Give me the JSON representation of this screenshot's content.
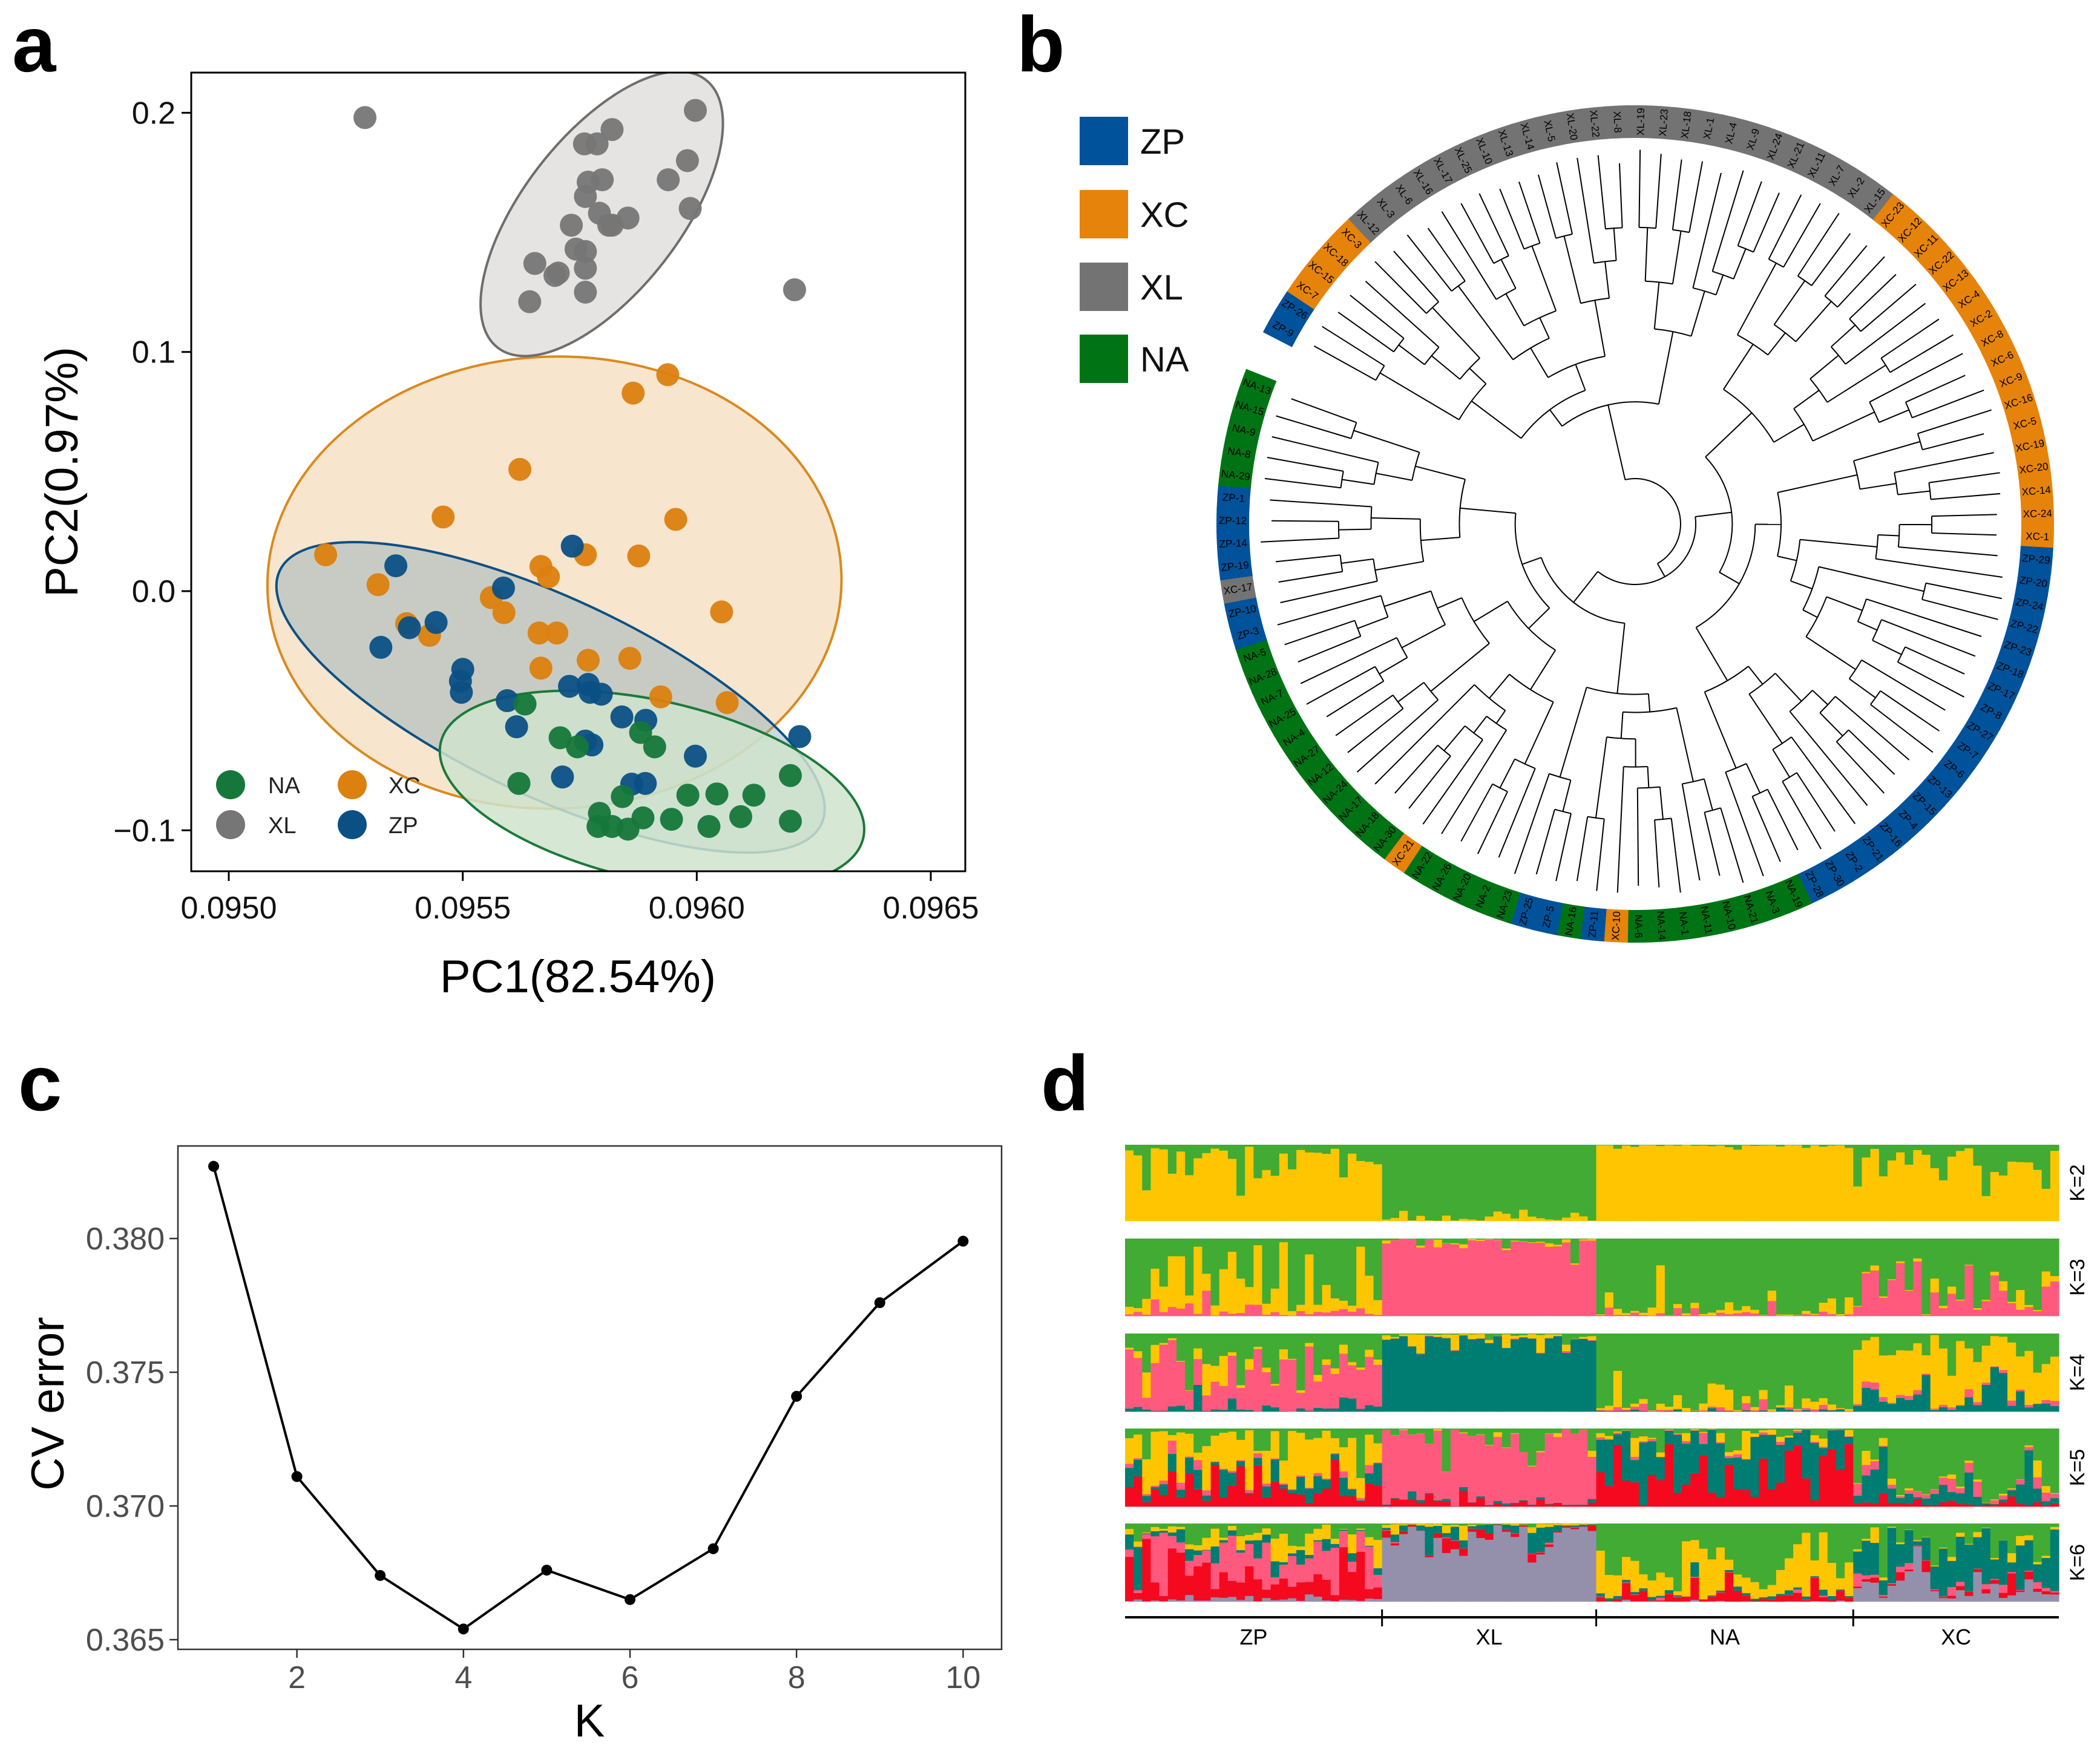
{
  "panel_labels": {
    "a": "a",
    "b": "b",
    "c": "c",
    "d": "d"
  },
  "colors": {
    "NA": "#15773a",
    "XL": "#767676",
    "XC": "#dc800f",
    "ZP": "#0b5085",
    "ring_ZP": "#00529b",
    "ring_XC": "#e6830a",
    "ring_XL": "#737373",
    "ring_NA": "#007414",
    "yellow": "#ffc600",
    "green": "#41ab33",
    "pink": "#ff5a7e",
    "teal": "#007d73",
    "red": "#f5091f",
    "purple": "#9490ac"
  },
  "chart_data": [
    {
      "id": "a",
      "type": "scatter",
      "xlabel": "PC1(82.54%)",
      "ylabel": "PC2(0.97%)",
      "xlim": [
        0.0949,
        0.09665
      ],
      "ylim": [
        -0.117,
        0.217
      ],
      "xticks": [
        "0.0950",
        "0.0955",
        "0.0960",
        "0.0965"
      ],
      "xtick_values": [
        0.095,
        0.0955,
        0.096,
        0.0965
      ],
      "yticks": [
        "0.2",
        "0.1",
        "0.0",
        "−0.1"
      ],
      "ytick_values": [
        0.2,
        0.1,
        0.0,
        -0.1
      ],
      "legend": {
        "position": "bottom-left",
        "entries": [
          "NA",
          "XL",
          "XC",
          "ZP"
        ]
      },
      "series": [
        {
          "name": "XL",
          "points": [
            [
              0.095291,
              0.198
            ],
            [
              0.095997,
              0.201
            ],
            [
              0.095819,
              0.193
            ],
            [
              0.09576,
              0.187
            ],
            [
              0.095787,
              0.187
            ],
            [
              0.09598,
              0.18
            ],
            [
              0.095768,
              0.171
            ],
            [
              0.095798,
              0.172
            ],
            [
              0.095939,
              0.172
            ],
            [
              0.095762,
              0.165
            ],
            [
              0.095986,
              0.16
            ],
            [
              0.095792,
              0.158
            ],
            [
              0.095853,
              0.156
            ],
            [
              0.095819,
              0.153
            ],
            [
              0.095812,
              0.153
            ],
            [
              0.095732,
              0.153
            ],
            [
              0.095742,
              0.143
            ],
            [
              0.095762,
              0.142
            ],
            [
              0.095654,
              0.137
            ],
            [
              0.095697,
              0.132
            ],
            [
              0.095704,
              0.133
            ],
            [
              0.095762,
              0.135
            ],
            [
              0.095762,
              0.125
            ],
            [
              0.095643,
              0.121
            ],
            [
              0.096209,
              0.126
            ]
          ]
        },
        {
          "name": "XC",
          "points": [
            [
              0.095864,
              0.0828
            ],
            [
              0.095938,
              0.0905
            ],
            [
              0.095622,
              0.0509
            ],
            [
              0.095458,
              0.031
            ],
            [
              0.095207,
              0.0152
            ],
            [
              0.095319,
              0.0027
            ],
            [
              0.095762,
              0.0152
            ],
            [
              0.095667,
              0.0103
            ],
            [
              0.095683,
              0.006
            ],
            [
              0.095876,
              0.0147
            ],
            [
              0.095955,
              0.03
            ],
            [
              0.096053,
              -0.0087
            ],
            [
              0.095561,
              -0.0027
            ],
            [
              0.095588,
              -0.009
            ],
            [
              0.09538,
              -0.0136
            ],
            [
              0.095429,
              -0.0185
            ],
            [
              0.095663,
              -0.0175
            ],
            [
              0.095701,
              -0.0175
            ],
            [
              0.095768,
              -0.0289
            ],
            [
              0.095857,
              -0.0281
            ],
            [
              0.095667,
              -0.0322
            ],
            [
              0.095923,
              -0.0442
            ],
            [
              0.096065,
              -0.0466
            ]
          ]
        },
        {
          "name": "ZP",
          "points": [
            [
              0.095357,
              0.0106
            ],
            [
              0.095734,
              0.0188
            ],
            [
              0.095587,
              0.0013
            ],
            [
              0.095386,
              -0.0153
            ],
            [
              0.095443,
              -0.0131
            ],
            [
              0.095325,
              -0.0235
            ],
            [
              0.0955,
              -0.0327
            ],
            [
              0.095495,
              -0.0376
            ],
            [
              0.095497,
              -0.0423
            ],
            [
              0.095595,
              -0.0458
            ],
            [
              0.095728,
              -0.0398
            ],
            [
              0.095768,
              -0.039
            ],
            [
              0.095796,
              -0.0431
            ],
            [
              0.095772,
              -0.0423
            ],
            [
              0.095615,
              -0.0567
            ],
            [
              0.09584,
              -0.0526
            ],
            [
              0.095891,
              -0.054
            ],
            [
              0.095762,
              -0.0627
            ],
            [
              0.095776,
              -0.0643
            ],
            [
              0.095713,
              -0.0777
            ],
            [
              0.095861,
              -0.0807
            ],
            [
              0.09589,
              -0.0804
            ],
            [
              0.095997,
              -0.069
            ],
            [
              0.09622,
              -0.0608
            ]
          ]
        },
        {
          "name": "NA",
          "points": [
            [
              0.095633,
              -0.0472
            ],
            [
              0.095708,
              -0.0613
            ],
            [
              0.095745,
              -0.0651
            ],
            [
              0.09588,
              -0.0591
            ],
            [
              0.09591,
              -0.0651
            ],
            [
              0.09562,
              -0.0804
            ],
            [
              0.095841,
              -0.0859
            ],
            [
              0.095981,
              -0.0853
            ],
            [
              0.096043,
              -0.0848
            ],
            [
              0.096122,
              -0.0853
            ],
            [
              0.0962,
              -0.0771
            ],
            [
              0.095792,
              -0.0929
            ],
            [
              0.095885,
              -0.0948
            ],
            [
              0.095946,
              -0.0954
            ],
            [
              0.096094,
              -0.0943
            ],
            [
              0.095789,
              -0.0984
            ],
            [
              0.095819,
              -0.0984
            ],
            [
              0.095853,
              -0.0995
            ],
            [
              0.096026,
              -0.0984
            ],
            [
              0.0962,
              -0.0962
            ]
          ]
        }
      ]
    },
    {
      "id": "b",
      "type": "dendrogram",
      "legend": [
        "ZP",
        "XC",
        "XL",
        "NA"
      ],
      "ring_overrides": {
        "XC-17": "XL"
      },
      "leaves": [
        "ZP-9",
        "ZP-26",
        "XC-7",
        "XC-15",
        "XC-18",
        "XC-3",
        "XL-12",
        "XL-3",
        "XL-6",
        "XL-16",
        "XL-17",
        "XL-25",
        "XL-10",
        "XL-13",
        "XL-14",
        "XL-5",
        "XL-20",
        "XL-22",
        "XL-8",
        "XL-19",
        "XL-23",
        "XL-18",
        "XL-1",
        "XL-4",
        "XL-9",
        "XL-24",
        "XL-21",
        "XL-11",
        "XL-7",
        "XL-2",
        "XL-15",
        "XC-23",
        "XC-12",
        "XC-11",
        "XC-22",
        "XC-13",
        "XC-4",
        "XC-2",
        "XC-8",
        "XC-6",
        "XC-9",
        "XC-16",
        "XC-5",
        "XC-19",
        "XC-20",
        "XC-14",
        "XC-24",
        "XC-1",
        "ZP-29",
        "ZP-20",
        "ZP-24",
        "ZP-22",
        "ZP-23",
        "ZP-18",
        "ZP-17",
        "ZP-8",
        "ZP-27",
        "ZP-7",
        "ZP-6",
        "ZP-13",
        "ZP-15",
        "ZP-4",
        "ZP-16",
        "ZP-21",
        "ZP-2",
        "ZP-30",
        "ZP-28",
        "NA-19",
        "NA-3",
        "NA-21",
        "NA-10",
        "NA-11",
        "NA-1",
        "NA-14",
        "NA-6",
        "XC-10",
        "ZP-11",
        "NA-16",
        "ZP-5",
        "ZP-25",
        "NA-23",
        "NA-2",
        "NA-20",
        "NA-26",
        "NA-22",
        "XC-21",
        "NA-30",
        "NA-18",
        "NA-17",
        "NA-24",
        "NA-12",
        "NA-27",
        "NA-4",
        "NA-25",
        "NA-7",
        "NA-28",
        "NA-5",
        "ZP-3",
        "ZP-10",
        "XC-17",
        "ZP-19",
        "ZP-14",
        "ZP-12",
        "ZP-1",
        "NA-29",
        "NA-8",
        "NA-9",
        "NA-15",
        "NA-13"
      ]
    },
    {
      "id": "c",
      "type": "line",
      "xlabel": "K",
      "ylabel": "CV error",
      "x": [
        1,
        2,
        3,
        4,
        5,
        6,
        7,
        8,
        9,
        10
      ],
      "y": [
        0.3827,
        0.3711,
        0.3674,
        0.3654,
        0.3676,
        0.3665,
        0.3684,
        0.3741,
        0.3776,
        0.3799
      ],
      "xticks": [
        "2",
        "4",
        "6",
        "8",
        "10"
      ],
      "xtick_values": [
        2,
        4,
        6,
        8,
        10
      ],
      "yticks": [
        "0.365",
        "0.370",
        "0.375",
        "0.380"
      ],
      "ytick_values": [
        0.365,
        0.37,
        0.375,
        0.38
      ],
      "xlim": [
        0.6,
        10.45
      ],
      "ylim": [
        0.36425,
        0.38355
      ]
    },
    {
      "id": "d",
      "type": "stacked-bar",
      "groups": [
        {
          "name": "ZP",
          "n": 30
        },
        {
          "name": "XL",
          "n": 25
        },
        {
          "name": "NA",
          "n": 30
        },
        {
          "name": "XC",
          "n": 24
        }
      ],
      "rows": [
        {
          "label": "K=2",
          "components": [
            "yellow",
            "green"
          ],
          "means": {
            "ZP": [
              0.86,
              0.14
            ],
            "XL": [
              0.02,
              0.98
            ],
            "NA": [
              0.99,
              0.01
            ],
            "XC": [
              0.72,
              0.28
            ]
          }
        },
        {
          "label": "K=3",
          "components": [
            "pink",
            "yellow",
            "green"
          ],
          "means": {
            "ZP": [
              0.05,
              0.45,
              0.5
            ],
            "XL": [
              0.985,
              0.005,
              0.01
            ],
            "NA": [
              0.01,
              0.03,
              0.96
            ],
            "XC": [
              0.32,
              0.05,
              0.63
            ]
          }
        },
        {
          "label": "K=4",
          "components": [
            "teal",
            "pink",
            "yellow",
            "green"
          ],
          "means": {
            "ZP": [
              0.04,
              0.5,
              0.1,
              0.36
            ],
            "XL": [
              0.92,
              0.0,
              0.06,
              0.02
            ],
            "NA": [
              0.01,
              0.02,
              0.07,
              0.9
            ],
            "XC": [
              0.15,
              0.05,
              0.6,
              0.2
            ]
          }
        },
        {
          "label": "K=5",
          "components": [
            "red",
            "teal",
            "pink",
            "yellow",
            "green"
          ],
          "means": {
            "ZP": [
              0.25,
              0.15,
              0.03,
              0.45,
              0.12
            ],
            "XL": [
              0.03,
              0.01,
              0.9,
              0.0,
              0.06
            ],
            "NA": [
              0.4,
              0.5,
              0.01,
              0.03,
              0.06
            ],
            "XC": [
              0.05,
              0.15,
              0.08,
              0.02,
              0.7
            ]
          }
        },
        {
          "label": "K=6",
          "components": [
            "purple",
            "red",
            "pink",
            "teal",
            "yellow",
            "green"
          ],
          "means": {
            "ZP": [
              0.03,
              0.35,
              0.3,
              0.07,
              0.1,
              0.15
            ],
            "XL": [
              0.88,
              0.04,
              0.0,
              0.06,
              0.02,
              0.0
            ],
            "NA": [
              0.0,
              0.1,
              0.0,
              0.02,
              0.3,
              0.58
            ],
            "XC": [
              0.15,
              0.05,
              0.02,
              0.5,
              0.03,
              0.25
            ]
          }
        }
      ]
    }
  ]
}
